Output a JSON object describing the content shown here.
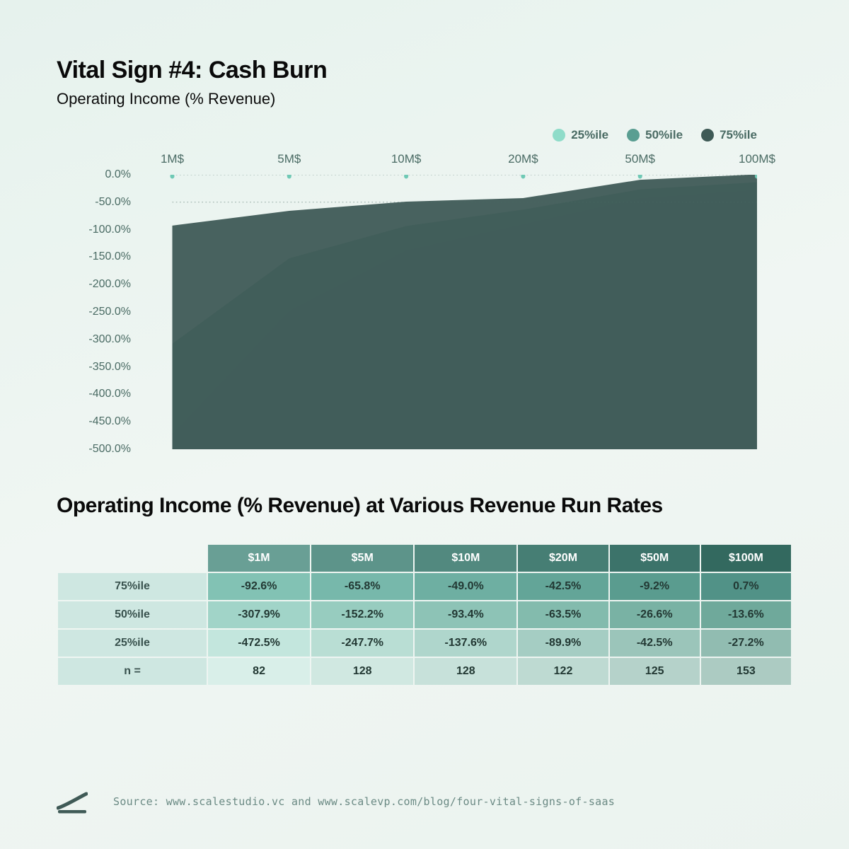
{
  "header": {
    "title": "Vital Sign #4: Cash Burn",
    "subtitle": "Operating Income (% Revenue)"
  },
  "legend": {
    "items": [
      {
        "label": "25%ile",
        "color": "#8fdcc9"
      },
      {
        "label": "50%ile",
        "color": "#5a9e92"
      },
      {
        "label": "75%ile",
        "color": "#3f5a56"
      }
    ]
  },
  "chart": {
    "type": "area",
    "x_categories": [
      "1M$",
      "5M$",
      "10M$",
      "20M$",
      "50M$",
      "100M$"
    ],
    "x_positions_pct": [
      5,
      24,
      43,
      62,
      81,
      100
    ],
    "y_min": -500,
    "y_max": 0,
    "y_tick_step": 50,
    "y_tick_labels": [
      "0.0%",
      "-50.0%",
      "-100.0%",
      "-150.0%",
      "-200.0%",
      "-250.0%",
      "-300.0%",
      "-350.0%",
      "-400.0%",
      "-450.0%",
      "-500.0%"
    ],
    "gridlines_at": [
      0,
      -50
    ],
    "series": [
      {
        "name": "25%ile",
        "color": "#8fdcc9",
        "values": [
          -472.5,
          -247.7,
          -137.6,
          -89.9,
          -42.5,
          -27.2
        ]
      },
      {
        "name": "50%ile",
        "color": "#5a9e92",
        "values": [
          -307.9,
          -152.2,
          -93.4,
          -63.5,
          -26.6,
          -13.6
        ]
      },
      {
        "name": "75%ile",
        "color": "#3f5a56",
        "values": [
          -92.6,
          -65.8,
          -49.0,
          -42.5,
          -9.2,
          0.7
        ]
      }
    ],
    "marker_color": "#6fc9b5",
    "background": "transparent",
    "grid_color": "#4a6b64",
    "label_color": "#4a6b64",
    "label_fontsize": 17
  },
  "table": {
    "title": "Operating Income (% Revenue) at Various Revenue Run Rates",
    "columns": [
      "$1M",
      "$5M",
      "$10M",
      "$20M",
      "$50M",
      "$100M"
    ],
    "column_colors": [
      "#699f95",
      "#5d948a",
      "#52897f",
      "#467e74",
      "#3c736a",
      "#33695f"
    ],
    "rows": [
      {
        "label": "75%ile",
        "cells": [
          "-92.6%",
          "-65.8%",
          "-49.0%",
          "-42.5%",
          "-9.2%",
          "0.7%"
        ],
        "cell_colors": [
          "#82c2b4",
          "#77b8ab",
          "#6eafa2",
          "#63a598",
          "#5a9c8f",
          "#519287"
        ]
      },
      {
        "label": "50%ile",
        "cells": [
          "-307.9%",
          "-152.2%",
          "-93.4%",
          "-63.5%",
          "-26.6%",
          "-13.6%"
        ],
        "cell_colors": [
          "#a1d4c8",
          "#97ccbf",
          "#8dc3b6",
          "#83bbad",
          "#79b2a4",
          "#6fa99b"
        ]
      },
      {
        "label": "25%ile",
        "cells": [
          "-472.5%",
          "-247.7%",
          "-137.6%",
          "-89.9%",
          "-42.5%",
          "-27.2%"
        ],
        "cell_colors": [
          "#c3e6dd",
          "#b9ded4",
          "#afd6cc",
          "#a5cdc3",
          "#9bc5ba",
          "#91bcb1"
        ]
      },
      {
        "label": "n =",
        "cells": [
          "82",
          "128",
          "128",
          "122",
          "125",
          "153"
        ],
        "cell_colors": [
          "#d9efe9",
          "#d0e8e1",
          "#c7e1da",
          "#bedad2",
          "#b5d2ca",
          "#accbc2"
        ]
      }
    ],
    "header_bg": "#3f5a56",
    "header_fg": "#ffffff",
    "rowheader_bg": "#cee7e1",
    "rowheader_fg": "#39524e",
    "cell_fg": "#223833"
  },
  "footer": {
    "source": "Source: www.scalestudio.vc and www.scalevp.com/blog/four-vital-signs-of-saas",
    "logo_color": "#3f5a56"
  }
}
